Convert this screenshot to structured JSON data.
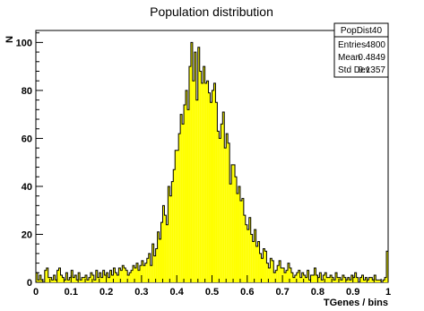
{
  "chart_data": {
    "type": "bar",
    "title": "Population distribution",
    "xlabel": "TGenes / bins",
    "ylabel": "N",
    "xlim": [
      0,
      1
    ],
    "ylim": [
      0,
      105
    ],
    "grid": false,
    "fill_color": "#ffff00",
    "line_color": "#000000",
    "xticks": [
      "0",
      "0.1",
      "0.2",
      "0.3",
      "0.4",
      "0.5",
      "0.6",
      "0.7",
      "0.8",
      "0.9",
      "1"
    ],
    "yticks": [
      "0",
      "20",
      "40",
      "60",
      "80",
      "100"
    ],
    "xtick_values": [
      0,
      0.1,
      0.2,
      0.3,
      0.4,
      0.5,
      0.6,
      0.7,
      0.8,
      0.9,
      1.0
    ],
    "ytick_values": [
      0,
      20,
      40,
      60,
      80,
      100
    ],
    "bin_edges": [
      0,
      1
    ],
    "counts": [
      4,
      1,
      3,
      1,
      0,
      5,
      6,
      2,
      2,
      1,
      3,
      1,
      5,
      6,
      3,
      2,
      1,
      4,
      1,
      2,
      5,
      2,
      3,
      1,
      4,
      1,
      2,
      2,
      3,
      1,
      2,
      4,
      3,
      1,
      5,
      2,
      4,
      2,
      5,
      3,
      4,
      2,
      5,
      3,
      6,
      4,
      3,
      6,
      5,
      7,
      6,
      5,
      3,
      4,
      5,
      7,
      6,
      8,
      5,
      7,
      9,
      7,
      8,
      10,
      12,
      7,
      16,
      11,
      14,
      21,
      18,
      25,
      32,
      28,
      24,
      40,
      36,
      42,
      47,
      55,
      55,
      62,
      70,
      66,
      74,
      80,
      72,
      90,
      100,
      84,
      96,
      76,
      98,
      88,
      83,
      90,
      83,
      84,
      79,
      75,
      80,
      83,
      75,
      63,
      60,
      66,
      71,
      56,
      62,
      58,
      41,
      49,
      49,
      44,
      37,
      40,
      34,
      35,
      28,
      24,
      22,
      27,
      20,
      17,
      22,
      15,
      17,
      12,
      10,
      14,
      13,
      8,
      6,
      10,
      9,
      4,
      5,
      7,
      9,
      6,
      6,
      4,
      5,
      8,
      6,
      4,
      2,
      3,
      4,
      5,
      2,
      4,
      3,
      2,
      5,
      1,
      3,
      3,
      6,
      3,
      2,
      4,
      1,
      3,
      4,
      2,
      2,
      3,
      2,
      1,
      4,
      2,
      2,
      1,
      3,
      2,
      1,
      2,
      1,
      3,
      2,
      4,
      2,
      0,
      2,
      3,
      1,
      2,
      1,
      2,
      2,
      1,
      3,
      1,
      1,
      1,
      0,
      1,
      2,
      13
    ]
  },
  "stats_box": {
    "name": "PopDist40",
    "rows": [
      {
        "label": "Entries",
        "value": "4800"
      },
      {
        "label": "Mean",
        "value": "0.4849"
      },
      {
        "label": "Std Dev",
        "value": "0.1357"
      }
    ]
  }
}
